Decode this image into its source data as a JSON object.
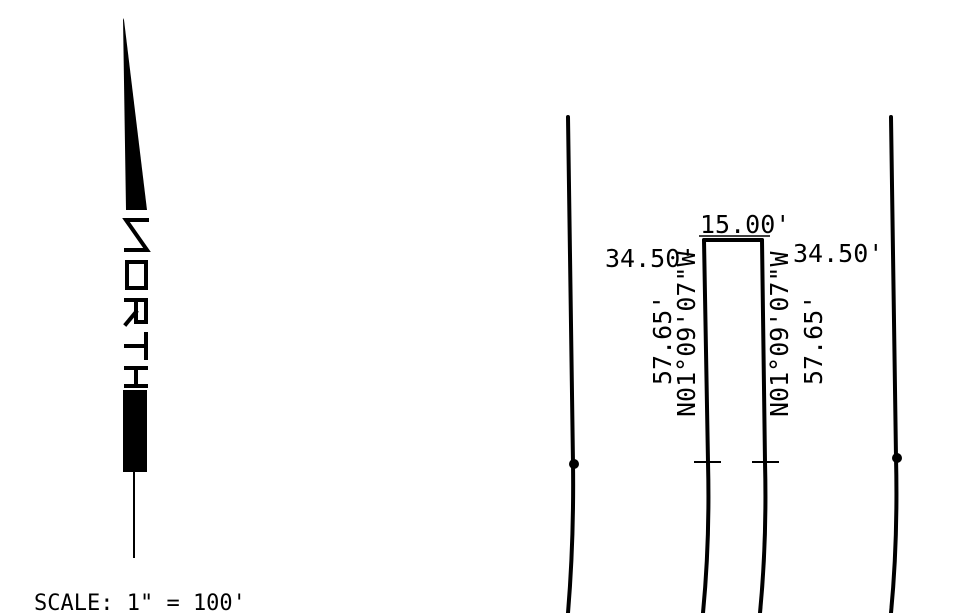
{
  "drawing": {
    "top_width": "15.00'",
    "left_offset": "34.50'",
    "right_offset": "34.50'",
    "left_side_length": "57.65'",
    "left_side_bearing": "N01°09'07\"W",
    "right_side_bearing": "N01°09'07\"W",
    "right_side_length": "57.65'",
    "scale": "SCALE:  1\"  =  100'"
  },
  "north_arrow": {
    "letters": "NORTH"
  }
}
